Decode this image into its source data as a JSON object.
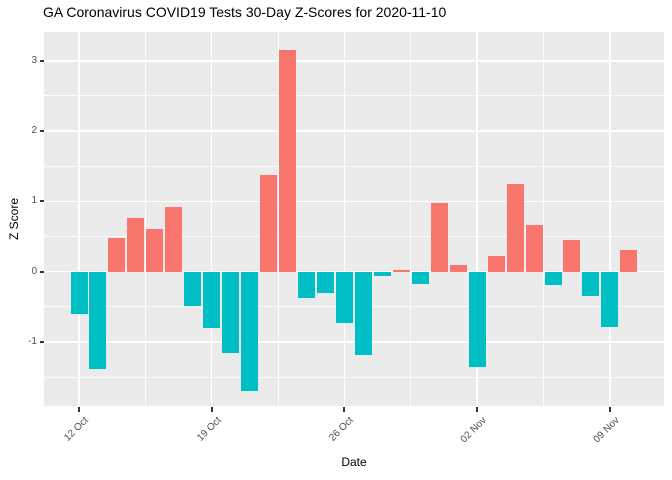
{
  "chart": {
    "title": "GA Coronavirus COVID19 Tests 30-Day Z-Scores for 2020-11-10",
    "xlabel": "Date",
    "ylabel": "Z Score"
  },
  "chart_data": {
    "type": "bar",
    "title": "GA Coronavirus COVID19 Tests 30-Day Z-Scores for 2020-11-10",
    "xlabel": "Date",
    "ylabel": "Z Score",
    "grid": true,
    "legend": "none",
    "ylim": [
      -1.92,
      3.41
    ],
    "y_ticks": [
      3,
      2,
      1,
      0,
      -1
    ],
    "y_tick_labels": [
      "3",
      "2",
      "1",
      "0",
      "-1"
    ],
    "y_minor_ticks": [
      2.5,
      1.5,
      0.5,
      -0.5,
      -1.5
    ],
    "x_tick_labels": [
      "12 Oct",
      "19 Oct",
      "26 Oct",
      "02 Nov",
      "09 Nov"
    ],
    "x_tick_indices": [
      0,
      7,
      14,
      21,
      28
    ],
    "colors": {
      "positive_bar": "#F8766D",
      "negative_bar": "#00BFC4",
      "panel_background": "#EBEBEB",
      "gridline": "#FFFFFF",
      "axis_text": "#4D4D4D",
      "title_text": "#000000",
      "tick_mark": "#333333"
    },
    "dates": [
      "2020-10-12",
      "2020-10-13",
      "2020-10-14",
      "2020-10-15",
      "2020-10-16",
      "2020-10-17",
      "2020-10-18",
      "2020-10-19",
      "2020-10-20",
      "2020-10-21",
      "2020-10-22",
      "2020-10-23",
      "2020-10-24",
      "2020-10-25",
      "2020-10-26",
      "2020-10-27",
      "2020-10-28",
      "2020-10-29",
      "2020-10-30",
      "2020-10-31",
      "2020-11-01",
      "2020-11-02",
      "2020-11-03",
      "2020-11-04",
      "2020-11-05",
      "2020-11-06",
      "2020-11-07",
      "2020-11-08",
      "2020-11-09",
      "2020-11-10"
    ],
    "values": [
      -0.6,
      -1.38,
      0.48,
      0.76,
      0.61,
      0.92,
      -0.49,
      -0.8,
      -1.16,
      -1.7,
      1.38,
      3.16,
      -0.38,
      -0.31,
      -0.73,
      -1.19,
      -0.06,
      0.02,
      -0.18,
      0.98,
      0.09,
      -1.35,
      0.22,
      1.25,
      0.66,
      -0.19,
      0.45,
      -0.34,
      -0.78,
      0.31
    ]
  }
}
